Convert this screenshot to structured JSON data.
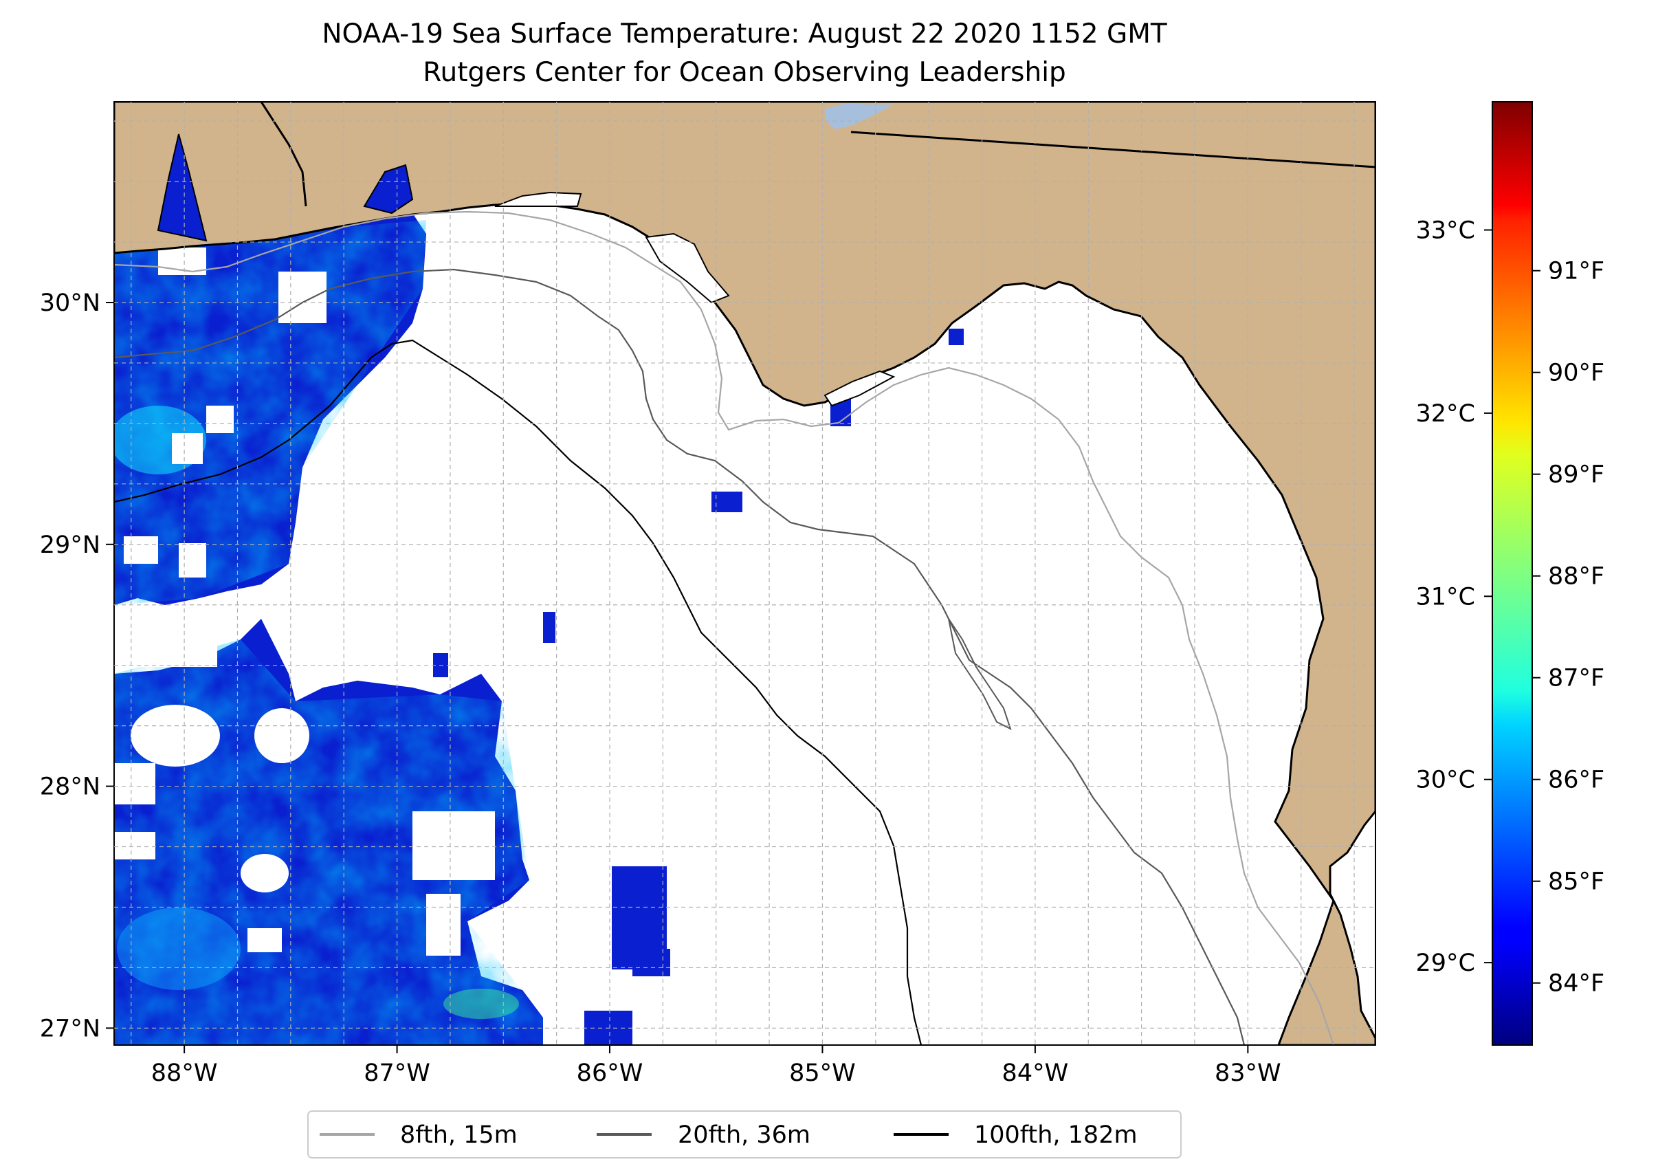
{
  "title": "NOAA-19 Sea Surface Temperature: August 22 2020 1152 GMT",
  "subtitle": "Rutgers Center for Ocean Observing Leadership",
  "map": {
    "lon_range": [
      -88.33,
      -82.4
    ],
    "lat_range": [
      26.93,
      30.83
    ],
    "lon_ticks": [
      {
        "value": -88,
        "label": "88°W"
      },
      {
        "value": -87,
        "label": "87°W"
      },
      {
        "value": -86,
        "label": "86°W"
      },
      {
        "value": -85,
        "label": "85°W"
      },
      {
        "value": -84,
        "label": "84°W"
      },
      {
        "value": -83,
        "label": "83°W"
      }
    ],
    "lat_ticks": [
      {
        "value": 27,
        "label": "27°N"
      },
      {
        "value": 28,
        "label": "28°N"
      },
      {
        "value": 29,
        "label": "29°N"
      },
      {
        "value": 30,
        "label": "30°N"
      }
    ],
    "gridlines": "dashed",
    "land_color": "#d2b48c",
    "ocean_color": "#ffffff",
    "lake_color": "#a5bfdd"
  },
  "colorbar": {
    "colormap": "jet",
    "range_c": [
      28.55,
      33.7
    ],
    "celsius_ticks": [
      {
        "value": 29,
        "label": "29°C"
      },
      {
        "value": 30,
        "label": "30°C"
      },
      {
        "value": 31,
        "label": "31°C"
      },
      {
        "value": 32,
        "label": "32°C"
      },
      {
        "value": 33,
        "label": "33°C"
      }
    ],
    "fahrenheit_ticks": [
      {
        "value": 84,
        "label": "84°F"
      },
      {
        "value": 85,
        "label": "85°F"
      },
      {
        "value": 86,
        "label": "86°F"
      },
      {
        "value": 87,
        "label": "87°F"
      },
      {
        "value": 88,
        "label": "88°F"
      },
      {
        "value": 89,
        "label": "89°F"
      },
      {
        "value": 90,
        "label": "90°F"
      },
      {
        "value": 91,
        "label": "91°F"
      }
    ]
  },
  "legend": {
    "placement": "bottom-center",
    "items": [
      {
        "label": "8fth, 15m",
        "color": "#a6a6a6"
      },
      {
        "label": "20fth, 36m",
        "color": "#595959"
      },
      {
        "label": "100fth, 182m",
        "color": "#000000"
      }
    ]
  }
}
